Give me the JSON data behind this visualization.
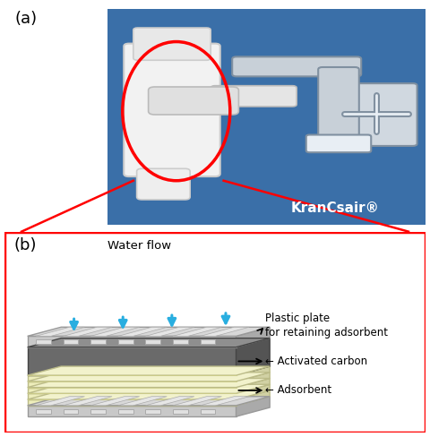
{
  "title_a": "(a)",
  "title_b": "(b)",
  "water_flow_label": "Water flow",
  "brand_label": "KranCsair®",
  "photo_bg": "#3a6fa8",
  "box_border_color": "red",
  "arrow_color": "#29aee0",
  "plastic_plate_color": "#c8c8c8",
  "plastic_plate_light": "#e8e8e8",
  "plastic_plate_dark": "#aaaaaa",
  "activated_carbon_color": "#6a6a6a",
  "activated_carbon_light": "#8a8a8a",
  "activated_carbon_dark": "#505050",
  "adsorbent_color": "#eeeebb",
  "adsorbent_light": "#f8f8dd",
  "adsorbent_dark": "#cccc99",
  "fig_bg": "#ffffff",
  "ann_color": "black",
  "label_fontsize": 9.5,
  "ann_fontsize": 8.5,
  "brand_fontsize": 11
}
